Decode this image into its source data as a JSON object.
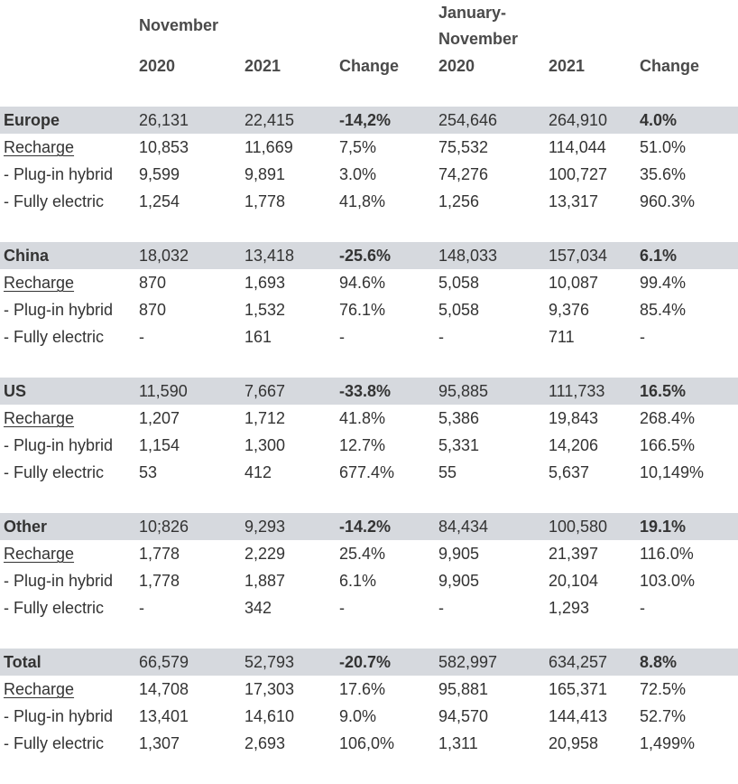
{
  "headers": {
    "group_november": "November",
    "group_jannov_line1": "January-",
    "group_jannov_line2": "November",
    "col_2020_a": "2020",
    "col_2021_a": "2021",
    "col_change_a": "Change",
    "col_2020_b": "2020",
    "col_2021_b": "2021",
    "col_change_b": "Change"
  },
  "sections": [
    {
      "rows": [
        {
          "label": "Europe",
          "v": [
            "26,131",
            "22,415",
            "-14,2%",
            "254,646",
            "264,910",
            "4.0%"
          ]
        },
        {
          "label": "Recharge",
          "v": [
            "10,853",
            "11,669",
            "7,5%",
            "75,532",
            "114,044",
            "51.0%"
          ]
        },
        {
          "label": " - Plug-in hybrid",
          "v": [
            "9,599",
            "9,891",
            "3.0%",
            "74,276",
            "100,727",
            "35.6%"
          ]
        },
        {
          "label": " - Fully electric",
          "v": [
            "1,254",
            "1,778",
            "41,8%",
            "1,256",
            "13,317",
            "960.3%"
          ]
        }
      ]
    },
    {
      "rows": [
        {
          "label": "China",
          "v": [
            "18,032",
            "13,418",
            "-25.6%",
            "148,033",
            "157,034",
            "6.1%"
          ]
        },
        {
          "label": "Recharge",
          "v": [
            "870",
            "1,693",
            "94.6%",
            "5,058",
            "10,087",
            "99.4%"
          ]
        },
        {
          "label": " - Plug-in hybrid",
          "v": [
            "870",
            "1,532",
            "76.1%",
            "5,058",
            "9,376",
            "85.4%"
          ]
        },
        {
          "label": " - Fully electric",
          "v": [
            "-",
            "161",
            "-",
            "-",
            "711",
            "-"
          ]
        }
      ]
    },
    {
      "rows": [
        {
          "label": "US",
          "v": [
            "11,590",
            "7,667",
            "-33.8%",
            "95,885",
            "111,733",
            "16.5%"
          ]
        },
        {
          "label": "Recharge",
          "v": [
            "1,207",
            "1,712",
            "41.8%",
            "5,386",
            "19,843",
            "268.4%"
          ]
        },
        {
          "label": " - Plug-in hybrid",
          "v": [
            "1,154",
            "1,300",
            "12.7%",
            "5,331",
            "14,206",
            "166.5%"
          ]
        },
        {
          "label": " - Fully electric",
          "v": [
            "53",
            "412",
            "677.4%",
            "55",
            "5,637",
            "10,149%"
          ]
        }
      ]
    },
    {
      "rows": [
        {
          "label": "Other",
          "v": [
            "10;826",
            "9,293",
            "-14.2%",
            "84,434",
            "100,580",
            "19.1%"
          ]
        },
        {
          "label": "Recharge",
          "v": [
            "1,778",
            "2,229",
            "25.4%",
            "9,905",
            "21,397",
            "116.0%"
          ]
        },
        {
          "label": " - Plug-in hybrid",
          "v": [
            "1,778",
            "1,887",
            "6.1%",
            "9,905",
            "20,104",
            "103.0%"
          ]
        },
        {
          "label": " - Fully electric",
          "v": [
            "-",
            "342",
            "-",
            "-",
            "1,293",
            "-"
          ]
        }
      ]
    },
    {
      "rows": [
        {
          "label": "Total",
          "v": [
            "66,579",
            "52,793",
            "-20.7%",
            "582,997",
            "634,257",
            "8.8%"
          ]
        },
        {
          "label": "Recharge",
          "v": [
            "14,708",
            "17,303",
            "17.6%",
            "95,881",
            "165,371",
            "72.5%"
          ]
        },
        {
          "label": " - Plug-in hybrid",
          "v": [
            "13,401",
            "14,610",
            "9.0%",
            "94,570",
            "144,413",
            "52.7%"
          ]
        },
        {
          "label": " - Fully electric",
          "v": [
            "1,307",
            "2,693",
            "106,0%",
            "1,311",
            "20,958",
            "1,499%"
          ]
        }
      ]
    }
  ],
  "colors": {
    "region_row_bg": "#d6d9de",
    "text": "#333333",
    "header_text": "#4a4a4a"
  }
}
